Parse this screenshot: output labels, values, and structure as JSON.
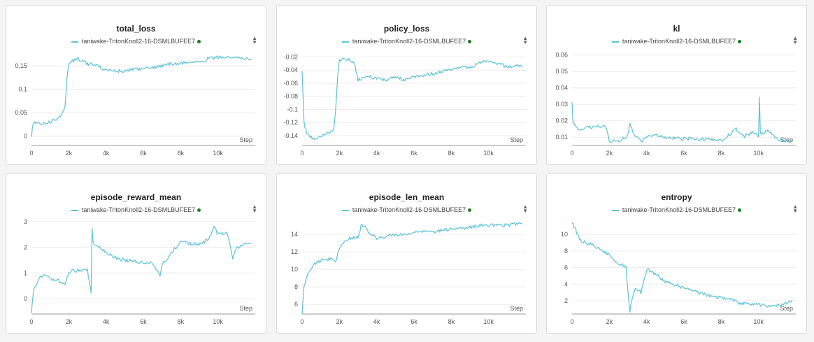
{
  "accent_color": "#5bc2d8",
  "legend_status_color": "#1c7d1c",
  "chart_data": [
    {
      "type": "line",
      "title": "total_loss",
      "xlabel": "Step",
      "series": [
        {
          "name": "taniwake-TritonKnoll2-16-DSMLBUFEE7",
          "color": "#5bc2d8"
        }
      ],
      "xlim": [
        0,
        12000
      ],
      "ylim": [
        -0.02,
        0.18
      ],
      "xticks": [
        0,
        2000,
        4000,
        6000,
        8000,
        10000
      ],
      "xtick_labels": [
        "0",
        "2k",
        "4k",
        "6k",
        "8k",
        "10k"
      ],
      "yticks": [
        0,
        0.05,
        0.1,
        0.15
      ],
      "ytick_labels": [
        "0",
        "0.05",
        "0.1",
        "0.15"
      ],
      "x": [
        0,
        100,
        500,
        1000,
        1500,
        1800,
        1900,
        2000,
        2200,
        2500,
        2800,
        3000,
        3500,
        4000,
        4500,
        5000,
        5500,
        6000,
        6500,
        7000,
        7500,
        8000,
        8500,
        9000,
        9500,
        10000,
        10500,
        11000,
        11500,
        11800
      ],
      "y": [
        0.0,
        0.03,
        0.025,
        0.03,
        0.04,
        0.06,
        0.12,
        0.155,
        0.16,
        0.165,
        0.16,
        0.155,
        0.15,
        0.14,
        0.14,
        0.138,
        0.142,
        0.145,
        0.147,
        0.15,
        0.155,
        0.155,
        0.158,
        0.16,
        0.165,
        0.168,
        0.17,
        0.168,
        0.165,
        0.163
      ]
    },
    {
      "type": "line",
      "title": "policy_loss",
      "xlabel": "Step",
      "series": [
        {
          "name": "taniwake-TritonKnoll2-16-DSMLBUFEE7",
          "color": "#5bc2d8"
        }
      ],
      "xlim": [
        0,
        12000
      ],
      "ylim": [
        -0.155,
        -0.012
      ],
      "xticks": [
        0,
        2000,
        4000,
        6000,
        8000,
        10000
      ],
      "xtick_labels": [
        "0",
        "2k",
        "4k",
        "6k",
        "8k",
        "10k"
      ],
      "yticks": [
        -0.14,
        -0.12,
        -0.1,
        -0.08,
        -0.06,
        -0.04,
        -0.02
      ],
      "ytick_labels": [
        "-0.14",
        "-0.12",
        "-0.1",
        "-0.08",
        "-0.06",
        "-0.04",
        "-0.02"
      ],
      "x": [
        0,
        100,
        300,
        600,
        1000,
        1500,
        1700,
        1800,
        1900,
        2000,
        2500,
        2800,
        3000,
        3500,
        4000,
        4500,
        5000,
        5500,
        6000,
        6500,
        7000,
        7500,
        8000,
        8500,
        9000,
        9500,
        10000,
        10500,
        11000,
        11500,
        11800
      ],
      "y": [
        -0.04,
        -0.12,
        -0.14,
        -0.145,
        -0.14,
        -0.135,
        -0.13,
        -0.1,
        -0.05,
        -0.025,
        -0.022,
        -0.03,
        -0.055,
        -0.05,
        -0.052,
        -0.055,
        -0.05,
        -0.055,
        -0.05,
        -0.048,
        -0.045,
        -0.042,
        -0.04,
        -0.035,
        -0.035,
        -0.03,
        -0.025,
        -0.03,
        -0.035,
        -0.033,
        -0.036
      ]
    },
    {
      "type": "line",
      "title": "kl",
      "xlabel": "Step",
      "series": [
        {
          "name": "taniwake-TritonKnoll2-16-DSMLBUFEE7",
          "color": "#5bc2d8"
        }
      ],
      "xlim": [
        0,
        12000
      ],
      "ylim": [
        0.005,
        0.062
      ],
      "xticks": [
        0,
        2000,
        4000,
        6000,
        8000,
        10000
      ],
      "xtick_labels": [
        "0",
        "2k",
        "4k",
        "6k",
        "8k",
        "10k"
      ],
      "yticks": [
        0.01,
        0.02,
        0.03,
        0.04,
        0.05,
        0.06
      ],
      "ytick_labels": [
        "0.01",
        "0.02",
        "0.03",
        "0.04",
        "0.05",
        "0.06"
      ],
      "x": [
        0,
        50,
        200,
        500,
        1000,
        1500,
        1800,
        2000,
        2500,
        3000,
        3100,
        3300,
        3700,
        4000,
        4500,
        5000,
        6000,
        7000,
        8000,
        8500,
        8800,
        9200,
        9600,
        10000,
        10050,
        10100,
        10500,
        11000,
        11500,
        11800
      ],
      "y": [
        0.032,
        0.02,
        0.016,
        0.015,
        0.016,
        0.017,
        0.017,
        0.008,
        0.008,
        0.011,
        0.019,
        0.012,
        0.007,
        0.01,
        0.011,
        0.01,
        0.009,
        0.009,
        0.008,
        0.012,
        0.015,
        0.01,
        0.013,
        0.011,
        0.034,
        0.012,
        0.014,
        0.009,
        0.008,
        0.008
      ]
    },
    {
      "type": "line",
      "title": "episode_reward_mean",
      "xlabel": "Step",
      "series": [
        {
          "name": "taniwake-TritonKnoll2-16-DSMLBUFEE7",
          "color": "#5bc2d8"
        }
      ],
      "xlim": [
        0,
        12000
      ],
      "ylim": [
        -0.6,
        3.05
      ],
      "xticks": [
        0,
        2000,
        4000,
        6000,
        8000,
        10000
      ],
      "xtick_labels": [
        "0",
        "2k",
        "4k",
        "6k",
        "8k",
        "10k"
      ],
      "yticks": [
        0,
        1,
        2,
        3
      ],
      "ytick_labels": [
        "0",
        "1",
        "2",
        "3"
      ],
      "x": [
        0,
        100,
        400,
        700,
        1000,
        1400,
        1800,
        2000,
        2500,
        3000,
        3200,
        3250,
        3300,
        3600,
        4000,
        4500,
        5000,
        5500,
        6000,
        6500,
        6900,
        7000,
        7500,
        8000,
        8500,
        9000,
        9500,
        9800,
        10000,
        10500,
        10800,
        11000,
        11500,
        11800
      ],
      "y": [
        -0.5,
        0.3,
        0.8,
        0.9,
        0.8,
        0.7,
        0.55,
        1.05,
        1.1,
        1.15,
        0.2,
        2.8,
        2.2,
        2.0,
        1.8,
        1.6,
        1.5,
        1.45,
        1.4,
        1.4,
        0.9,
        1.3,
        1.8,
        2.2,
        2.15,
        2.1,
        2.3,
        2.8,
        2.5,
        2.6,
        1.6,
        2.0,
        2.1,
        2.15
      ]
    },
    {
      "type": "line",
      "title": "episode_len_mean",
      "xlabel": "Step",
      "series": [
        {
          "name": "taniwake-TritonKnoll2-16-DSMLBUFEE7",
          "color": "#5bc2d8"
        }
      ],
      "xlim": [
        0,
        12000
      ],
      "ylim": [
        4.9,
        15.6
      ],
      "xticks": [
        0,
        2000,
        4000,
        6000,
        8000,
        10000
      ],
      "xtick_labels": [
        "0",
        "2k",
        "4k",
        "6k",
        "8k",
        "10k"
      ],
      "yticks": [
        6,
        8,
        10,
        12,
        14
      ],
      "ytick_labels": [
        "6",
        "8",
        "10",
        "12",
        "14"
      ],
      "x": [
        0,
        100,
        300,
        600,
        1000,
        1500,
        1800,
        2000,
        2500,
        3000,
        3200,
        3500,
        4000,
        4500,
        5000,
        5500,
        6000,
        6500,
        7000,
        7500,
        8000,
        8500,
        9000,
        9500,
        10000,
        10500,
        11000,
        11500,
        11800
      ],
      "y": [
        5.0,
        8.0,
        9.5,
        10.5,
        11.0,
        11.2,
        11.0,
        12.5,
        13.5,
        13.7,
        15.2,
        14.5,
        13.5,
        13.8,
        14.0,
        14.0,
        14.2,
        14.3,
        14.2,
        14.5,
        14.6,
        14.7,
        14.8,
        15.0,
        15.0,
        15.1,
        15.0,
        15.2,
        15.2
      ]
    },
    {
      "type": "line",
      "title": "entropy",
      "xlabel": "Step",
      "series": [
        {
          "name": "taniwake-TritonKnoll2-16-DSMLBUFEE7",
          "color": "#5bc2d8"
        }
      ],
      "xlim": [
        0,
        12000
      ],
      "ylim": [
        0.4,
        11.7
      ],
      "xticks": [
        0,
        2000,
        4000,
        6000,
        8000,
        10000
      ],
      "xtick_labels": [
        "0",
        "2k",
        "4k",
        "6k",
        "8k",
        "10k"
      ],
      "yticks": [
        2,
        4,
        6,
        8,
        10
      ],
      "ytick_labels": [
        "2",
        "4",
        "6",
        "8",
        "10"
      ],
      "x": [
        0,
        100,
        300,
        500,
        1000,
        1500,
        2000,
        2400,
        2700,
        2900,
        3000,
        3100,
        3200,
        3400,
        3700,
        4000,
        4500,
        5000,
        5500,
        6000,
        6500,
        7000,
        7500,
        8000,
        8500,
        9000,
        9500,
        10000,
        10500,
        11000,
        11500,
        11800
      ],
      "y": [
        11.5,
        11.0,
        10.0,
        9.2,
        8.8,
        8.2,
        7.5,
        6.5,
        6.3,
        6.0,
        3.0,
        0.8,
        2.0,
        3.5,
        3.0,
        5.8,
        5.2,
        4.2,
        4.0,
        3.5,
        3.2,
        2.8,
        2.6,
        2.3,
        2.2,
        1.7,
        1.6,
        1.5,
        1.3,
        1.4,
        1.8,
        2.1
      ]
    }
  ]
}
